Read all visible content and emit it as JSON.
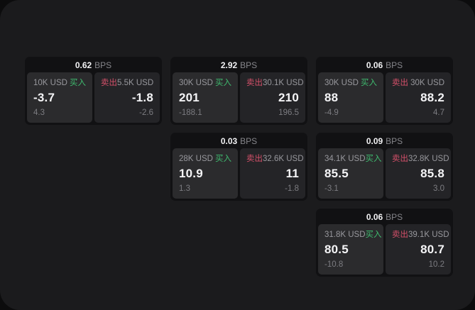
{
  "labels": {
    "bps_unit": "BPS",
    "buy": "买入",
    "sell": "卖出"
  },
  "colors": {
    "buy": "#3fbb6f",
    "sell": "#d4506a",
    "panel_background": "#1b1b1d",
    "card_background": "#111113",
    "buy_panel_background": "#2b2b2d",
    "sell_panel_background": "#242427"
  },
  "cards": [
    {
      "row": 1,
      "col": 1,
      "bps": "0.62",
      "buy": {
        "amount": "10K USD",
        "price": "-3.7",
        "delta": "4.3"
      },
      "sell": {
        "amount": "5.5K USD",
        "price": "-1.8",
        "delta": "-2.6"
      }
    },
    {
      "row": 1,
      "col": 2,
      "bps": "2.92",
      "buy": {
        "amount": "30K USD",
        "price": "201",
        "delta": "-188.1"
      },
      "sell": {
        "amount": "30.1K USD",
        "price": "210",
        "delta": "196.5"
      }
    },
    {
      "row": 1,
      "col": 3,
      "bps": "0.06",
      "buy": {
        "amount": "30K USD",
        "price": "88",
        "delta": "-4.9"
      },
      "sell": {
        "amount": "30K USD",
        "price": "88.2",
        "delta": "4.7"
      }
    },
    {
      "row": 2,
      "col": 2,
      "bps": "0.03",
      "buy": {
        "amount": "28K USD",
        "price": "10.9",
        "delta": "1.3"
      },
      "sell": {
        "amount": "32.6K USD",
        "price": "11",
        "delta": "-1.8"
      }
    },
    {
      "row": 2,
      "col": 3,
      "bps": "0.09",
      "buy": {
        "amount": "34.1K USD",
        "price": "85.5",
        "delta": "-3.1"
      },
      "sell": {
        "amount": "32.8K USD",
        "price": "85.8",
        "delta": "3.0"
      }
    },
    {
      "row": 3,
      "col": 3,
      "bps": "0.06",
      "buy": {
        "amount": "31.8K USD",
        "price": "80.5",
        "delta": "-10.8"
      },
      "sell": {
        "amount": "39.1K USD",
        "price": "80.7",
        "delta": "10.2"
      }
    }
  ]
}
